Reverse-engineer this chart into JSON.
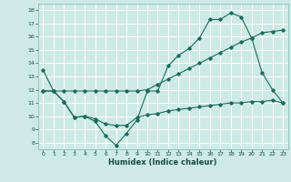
{
  "xlabel": "Humidex (Indice chaleur)",
  "bg_color": "#ceeae6",
  "grid_color": "#b0d8d2",
  "line_color": "#1a6b5a",
  "xlim": [
    -0.5,
    23.5
  ],
  "ylim": [
    7.5,
    18.5
  ],
  "xticks": [
    0,
    1,
    2,
    3,
    4,
    5,
    6,
    7,
    8,
    9,
    10,
    11,
    12,
    13,
    14,
    15,
    16,
    17,
    18,
    19,
    20,
    21,
    22,
    23
  ],
  "yticks": [
    8,
    9,
    10,
    11,
    12,
    13,
    14,
    15,
    16,
    17,
    18
  ],
  "series1_x": [
    0,
    1,
    2,
    3,
    4,
    5,
    6,
    7,
    8,
    9,
    10,
    11,
    12,
    13,
    14,
    15,
    16,
    17,
    18,
    19,
    20,
    21,
    22,
    23
  ],
  "series1_y": [
    13.5,
    11.9,
    11.1,
    9.9,
    10.0,
    9.6,
    8.5,
    7.8,
    8.7,
    9.7,
    11.9,
    11.9,
    13.8,
    14.6,
    15.1,
    15.9,
    17.3,
    17.3,
    17.8,
    17.5,
    15.9,
    13.3,
    12.0,
    11.0
  ],
  "series2_x": [
    0,
    1,
    2,
    3,
    4,
    5,
    6,
    7,
    8,
    9,
    10,
    11,
    12,
    13,
    14,
    15,
    16,
    17,
    18,
    19,
    20,
    21,
    22,
    23
  ],
  "series2_y": [
    11.9,
    11.9,
    11.1,
    9.9,
    10.0,
    9.8,
    9.4,
    9.3,
    9.3,
    9.9,
    10.1,
    10.2,
    10.4,
    10.5,
    10.6,
    10.7,
    10.8,
    10.9,
    11.0,
    11.0,
    11.1,
    11.1,
    11.2,
    11.0
  ],
  "series3_x": [
    0,
    1,
    2,
    3,
    4,
    5,
    6,
    7,
    8,
    9,
    10,
    11,
    12,
    13,
    14,
    15,
    16,
    17,
    18,
    19,
    20,
    21,
    22,
    23
  ],
  "series3_y": [
    11.9,
    11.9,
    11.9,
    11.9,
    11.9,
    11.9,
    11.9,
    11.9,
    11.9,
    11.9,
    12.0,
    12.4,
    12.8,
    13.2,
    13.6,
    14.0,
    14.4,
    14.8,
    15.2,
    15.6,
    15.9,
    16.3,
    16.4,
    16.5
  ]
}
